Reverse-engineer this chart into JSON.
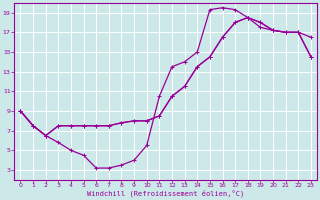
{
  "xlabel": "Windchill (Refroidissement éolien,°C)",
  "bg_color": "#cce8e8",
  "line_color": "#990099",
  "grid_color": "#aacccc",
  "xlim": [
    -0.5,
    23.5
  ],
  "ylim": [
    2,
    20
  ],
  "xticks": [
    0,
    1,
    2,
    3,
    4,
    5,
    6,
    7,
    8,
    9,
    10,
    11,
    12,
    13,
    14,
    15,
    16,
    17,
    18,
    19,
    20,
    21,
    22,
    23
  ],
  "yticks": [
    3,
    5,
    7,
    9,
    11,
    13,
    15,
    17,
    19
  ],
  "line1_x": [
    0,
    1,
    2,
    3,
    4,
    5,
    6,
    7,
    8,
    9,
    10,
    11,
    12,
    13,
    14,
    15,
    16,
    17,
    18,
    19,
    20,
    21,
    22,
    23
  ],
  "line1_y": [
    9,
    7.5,
    6.5,
    5.8,
    5.0,
    4.5,
    3.2,
    3.2,
    3.5,
    4.0,
    5.5,
    10.5,
    13.5,
    14.0,
    15.0,
    19.3,
    19.5,
    19.3,
    18.5,
    17.5,
    17.2,
    17.0,
    17.0,
    16.5
  ],
  "line2_x": [
    0,
    1,
    2,
    3,
    4,
    5,
    6,
    7,
    8,
    9,
    10,
    11,
    12,
    13,
    14,
    15,
    16,
    17,
    18,
    19,
    20,
    21,
    22,
    23
  ],
  "line2_y": [
    9,
    7.5,
    6.5,
    7.5,
    7.5,
    7.5,
    7.5,
    7.5,
    7.8,
    8.0,
    8.0,
    8.5,
    10.5,
    11.5,
    13.5,
    14.5,
    16.5,
    18.0,
    18.5,
    18.0,
    17.2,
    17.0,
    17.0,
    14.5
  ],
  "line3_x": [
    0,
    1,
    2,
    3,
    4,
    5,
    6,
    7,
    8,
    9,
    10,
    11,
    12,
    13,
    14,
    15,
    16,
    17,
    18,
    19,
    20,
    21,
    22,
    23
  ],
  "line3_y": [
    9,
    7.5,
    6.5,
    7.5,
    7.5,
    7.5,
    7.5,
    7.5,
    7.8,
    8.0,
    8.0,
    8.5,
    10.5,
    11.5,
    13.5,
    14.5,
    16.5,
    18.0,
    18.5,
    18.0,
    17.2,
    17.0,
    17.0,
    14.5
  ]
}
